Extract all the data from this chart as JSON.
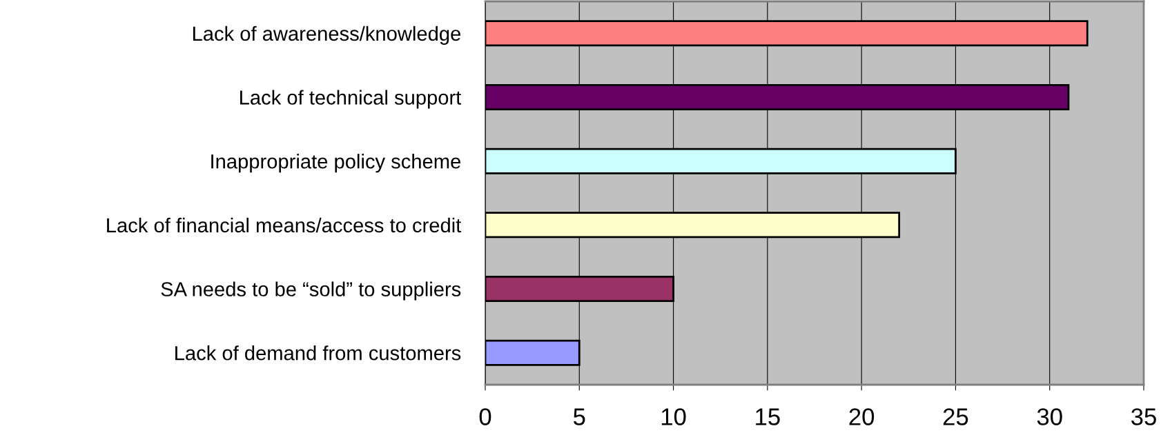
{
  "chart_data": {
    "type": "bar",
    "orientation": "horizontal",
    "categories": [
      "Lack of awareness/knowledge",
      "Lack of technical support",
      "Inappropriate policy scheme",
      "Lack of financial means/access to credit",
      "SA needs to be “sold” to suppliers",
      "Lack of demand from customers"
    ],
    "values": [
      32,
      31,
      25,
      22,
      10,
      5
    ],
    "colors": [
      "#ff8080",
      "#660066",
      "#ccffff",
      "#ffffcc",
      "#993366",
      "#9999ff"
    ],
    "xlim": [
      0,
      35
    ],
    "xticks": [
      0,
      5,
      10,
      15,
      20,
      25,
      30,
      35
    ],
    "grid": "x"
  }
}
